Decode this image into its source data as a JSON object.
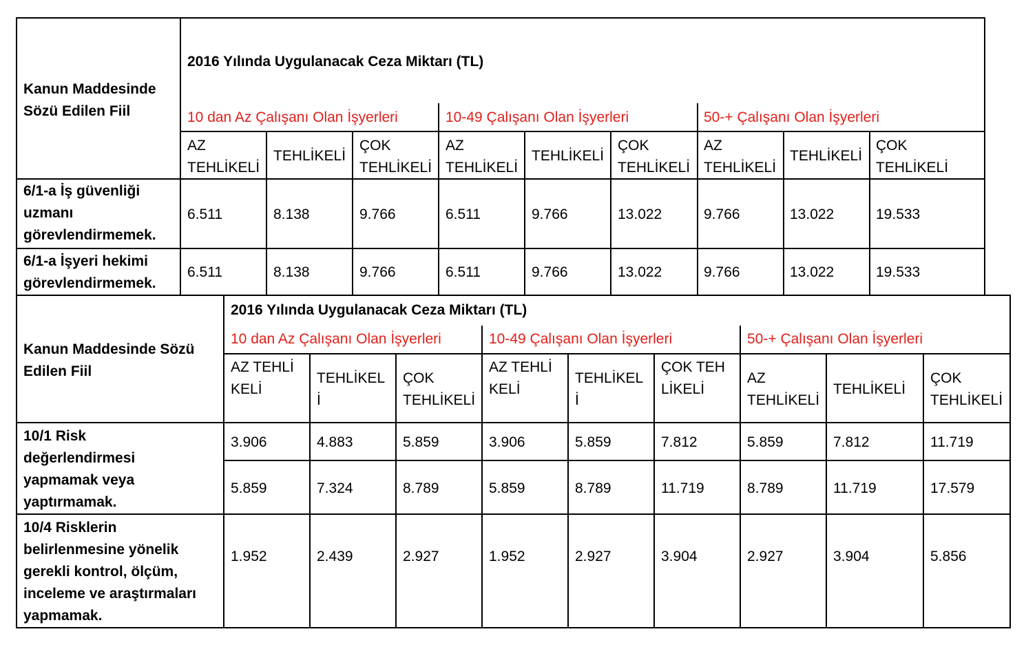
{
  "table1": {
    "row_header": "Kanun Maddesinde Sözü Edilen Fiil",
    "title": "2016 Yılında Uygulanacak Ceza Miktarı (TL)",
    "groups": [
      "10 dan Az Çalışanı Olan İşyerleri",
      "10-49 Çalışanı Olan İşyerleri",
      "50-+ Çalışanı Olan İşyerleri"
    ],
    "sub": [
      "AZ TEHLİKELİ",
      "TEHLİKELİ",
      "ÇOK TEHLİKELİ",
      "AZ TEHLİKELİ",
      "TEHLİKELİ",
      "ÇOK TEHLİKELİ",
      "AZ TEHLİKELİ",
      "TEHLİKELİ",
      "ÇOK TEHLİKELİ"
    ],
    "rows": [
      {
        "label": "6/1-a İş güvenliği uzmanı görevlendirmemek.",
        "values": [
          "6.511",
          "8.138",
          "9.766",
          "6.511",
          "9.766",
          "13.022",
          "9.766",
          "13.022",
          "19.533"
        ]
      },
      {
        "label": "6/1-a İşyeri hekimi görevlendirmemek.",
        "values": [
          "6.511",
          "8.138",
          "9.766",
          "6.511",
          "9.766",
          "13.022",
          "9.766",
          "13.022",
          "19.533"
        ]
      }
    ]
  },
  "table2": {
    "row_header": "Kanun Maddesinde Sözü Edilen Fiil",
    "title": "2016 Yılında Uygulanacak Ceza Miktarı (TL)",
    "groups": [
      "10 dan Az Çalışanı Olan İşyerleri",
      "10-49 Çalışanı Olan İşyerleri",
      "50-+ Çalışanı Olan İşyerleri"
    ],
    "sub": [
      "AZ TEHLİKELİ",
      "TEHLİKELİ",
      "ÇOK TEHLİKELİ",
      "AZ TEHLİKELİ",
      "TEHLİKELİ",
      "ÇOK TEHLİKELİ",
      "AZ TEHLİKELİ",
      "TEHLİKELİ",
      "ÇOK TEHLİKELİ"
    ],
    "rows": [
      {
        "label": "10/1 Risk değerlendirmesi yapmamak veya yaptırmamak.",
        "values": [
          "3.906",
          "4.883",
          "5.859",
          "3.906",
          "5.859",
          "7.812",
          "5.859",
          "7.812",
          "11.719"
        ],
        "values2": [
          "5.859",
          "7.324",
          "8.789",
          "5.859",
          "8.789",
          "11.719",
          "8.789",
          "11.719",
          "17.579"
        ]
      },
      {
        "label": "10/4 Risklerin belirlenmesine yönelik gerekli kontrol, ölçüm, inceleme ve araştırmaları yapmamak.",
        "values": [
          "1.952",
          "2.439",
          "2.927",
          "1.952",
          "2.927",
          "3.904",
          "2.927",
          "3.904",
          "5.856"
        ]
      }
    ]
  }
}
